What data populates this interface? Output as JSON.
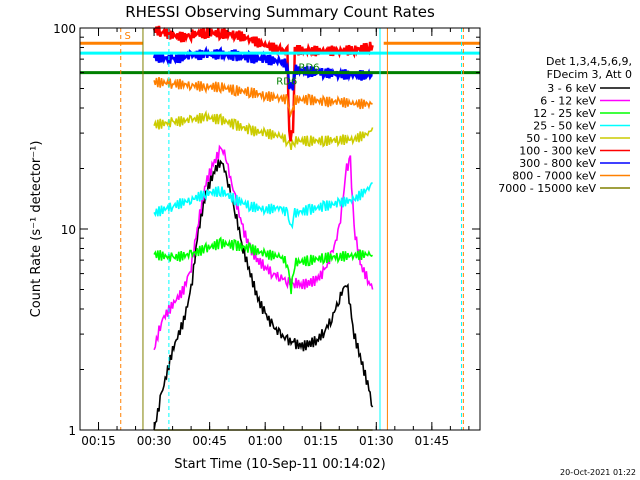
{
  "chart_data": {
    "type": "line",
    "title": "RHESSI Observing Summary Count Rates",
    "xlabel": "Start Time (10-Sep-11 00:14:02)",
    "ylabel": "Count Rate (s⁻¹ detector⁻¹)",
    "y_scale": "log",
    "ylim": [
      1,
      100
    ],
    "xlim_minutes": [
      10,
      58
    ],
    "x_ticks": [
      {
        "label": "00:15",
        "minutes": 15
      },
      {
        "label": "00:30",
        "minutes": 30
      },
      {
        "label": "00:45",
        "minutes": 45
      },
      {
        "label": "01:00",
        "minutes": 60
      },
      {
        "label": "01:15",
        "minutes": 75
      },
      {
        "label": "01:30",
        "minutes": 90
      },
      {
        "label": "01:45",
        "minutes": 105
      }
    ],
    "y_ticks": [
      {
        "label": "1",
        "value": 1
      },
      {
        "label": "10",
        "value": 10
      },
      {
        "label": "100",
        "value": 100
      }
    ],
    "legend": {
      "placement": "right",
      "header": [
        "Det 1,3,4,5,6,9,",
        "FDecim 3, Att 0"
      ],
      "entries": [
        {
          "label": "3 - 6 keV",
          "color": "#000000"
        },
        {
          "label": "6 - 12 keV",
          "color": "#ff00ff"
        },
        {
          "label": "12 - 25 keV",
          "color": "#00ff00"
        },
        {
          "label": "25 - 50 keV",
          "color": "#00ffff"
        },
        {
          "label": "50 - 100 keV",
          "color": "#cccc00"
        },
        {
          "label": "100 - 300 keV",
          "color": "#ff0000"
        },
        {
          "label": "300 - 800 keV",
          "color": "#0000ff"
        },
        {
          "label": "800 - 7000 keV",
          "color": "#ff8000"
        },
        {
          "label": "7000 - 15000 keV",
          "color": "#808000"
        }
      ]
    },
    "annotations": [
      {
        "text": "S",
        "color": "#ff8000"
      },
      {
        "text": "RD6",
        "color": "#008000"
      },
      {
        "text": "RD6",
        "color": "#008000"
      }
    ],
    "footer": "20-Oct-2021 01:22",
    "series": [
      {
        "name": "3 - 6 keV",
        "color": "#000000",
        "points": [
          [
            30,
            1
          ],
          [
            32,
            1.5
          ],
          [
            35,
            2.5
          ],
          [
            38,
            3.5
          ],
          [
            40,
            5
          ],
          [
            42,
            10
          ],
          [
            44,
            15
          ],
          [
            46,
            19
          ],
          [
            48,
            22
          ],
          [
            49,
            20
          ],
          [
            50,
            17
          ],
          [
            52,
            12
          ],
          [
            54,
            8
          ],
          [
            56,
            6
          ],
          [
            58,
            4.5
          ],
          [
            60,
            3.8
          ],
          [
            62,
            3.3
          ],
          [
            64,
            3
          ],
          [
            66,
            2.8
          ],
          [
            68,
            2.7
          ],
          [
            70,
            2.6
          ],
          [
            72,
            2.7
          ],
          [
            74,
            2.8
          ],
          [
            76,
            3.1
          ],
          [
            78,
            3.6
          ],
          [
            80,
            4.5
          ],
          [
            82,
            5.5
          ],
          [
            84,
            3
          ],
          [
            86,
            2.2
          ],
          [
            88,
            1.6
          ],
          [
            89,
            1.3
          ]
        ]
      },
      {
        "name": "6 - 12 keV",
        "color": "#ff00ff",
        "points": [
          [
            30,
            2.5
          ],
          [
            32,
            3.5
          ],
          [
            35,
            4.2
          ],
          [
            38,
            5
          ],
          [
            40,
            6.5
          ],
          [
            42,
            11
          ],
          [
            44,
            17
          ],
          [
            46,
            21
          ],
          [
            48,
            25
          ],
          [
            49,
            24
          ],
          [
            50,
            20
          ],
          [
            52,
            14
          ],
          [
            54,
            10
          ],
          [
            56,
            8
          ],
          [
            58,
            7
          ],
          [
            60,
            6.5
          ],
          [
            62,
            6
          ],
          [
            64,
            5.8
          ],
          [
            66,
            5.5
          ],
          [
            68,
            5.4
          ],
          [
            70,
            5.3
          ],
          [
            72,
            5.4
          ],
          [
            74,
            5.6
          ],
          [
            76,
            6.2
          ],
          [
            78,
            7.5
          ],
          [
            80,
            10
          ],
          [
            82,
            20
          ],
          [
            83,
            22
          ],
          [
            84,
            10
          ],
          [
            86,
            6.5
          ],
          [
            88,
            5.5
          ],
          [
            89,
            5
          ]
        ]
      },
      {
        "name": "12 - 25 keV",
        "color": "#00ff00",
        "points": [
          [
            30,
            7.5
          ],
          [
            35,
            7.2
          ],
          [
            40,
            7.5
          ],
          [
            44,
            8
          ],
          [
            48,
            8.5
          ],
          [
            52,
            8.3
          ],
          [
            56,
            8
          ],
          [
            60,
            7.5
          ],
          [
            64,
            7.3
          ],
          [
            66,
            6.8
          ],
          [
            67,
            5
          ],
          [
            68,
            6.8
          ],
          [
            72,
            7
          ],
          [
            76,
            7.2
          ],
          [
            80,
            7.3
          ],
          [
            84,
            7.4
          ],
          [
            88,
            7.5
          ],
          [
            89,
            7.4
          ]
        ]
      },
      {
        "name": "25 - 50 keV",
        "color": "#00ffff",
        "points": [
          [
            30,
            12
          ],
          [
            35,
            13
          ],
          [
            40,
            14
          ],
          [
            44,
            15
          ],
          [
            48,
            15.5
          ],
          [
            52,
            14
          ],
          [
            56,
            13
          ],
          [
            60,
            12.5
          ],
          [
            64,
            12.8
          ],
          [
            66,
            12
          ],
          [
            67,
            10
          ],
          [
            68,
            12
          ],
          [
            72,
            12.5
          ],
          [
            76,
            13
          ],
          [
            80,
            13.5
          ],
          [
            84,
            14
          ],
          [
            88,
            16
          ],
          [
            89,
            17
          ]
        ]
      },
      {
        "name": "50 - 100 keV",
        "color": "#cccc00",
        "points": [
          [
            30,
            33
          ],
          [
            35,
            34
          ],
          [
            40,
            35
          ],
          [
            44,
            36
          ],
          [
            48,
            35
          ],
          [
            52,
            33
          ],
          [
            56,
            31
          ],
          [
            60,
            30
          ],
          [
            64,
            29
          ],
          [
            66,
            27.5
          ],
          [
            67,
            26
          ],
          [
            68,
            27.5
          ],
          [
            72,
            27.5
          ],
          [
            76,
            27.5
          ],
          [
            80,
            27.8
          ],
          [
            84,
            28
          ],
          [
            88,
            30
          ],
          [
            89,
            32
          ]
        ]
      },
      {
        "name": "100 - 300 keV",
        "color": "#ff0000",
        "points": [
          [
            30,
            98
          ],
          [
            32,
            96
          ],
          [
            35,
            92
          ],
          [
            38,
            90
          ],
          [
            40,
            93
          ],
          [
            44,
            95
          ],
          [
            48,
            94
          ],
          [
            52,
            93
          ],
          [
            56,
            88
          ],
          [
            60,
            82
          ],
          [
            64,
            78
          ],
          [
            66,
            76
          ],
          [
            66.5,
            29
          ],
          [
            67.5,
            29
          ],
          [
            68,
            78
          ],
          [
            72,
            77
          ],
          [
            76,
            77
          ],
          [
            80,
            77
          ],
          [
            84,
            78
          ],
          [
            88,
            80
          ],
          [
            89,
            82
          ]
        ]
      },
      {
        "name": "300 - 800 keV",
        "color": "#0000ff",
        "points": [
          [
            30,
            72
          ],
          [
            35,
            70
          ],
          [
            40,
            73
          ],
          [
            44,
            74
          ],
          [
            48,
            74
          ],
          [
            52,
            73
          ],
          [
            56,
            71
          ],
          [
            60,
            70
          ],
          [
            64,
            68
          ],
          [
            66,
            66
          ],
          [
            66.5,
            52
          ],
          [
            67.5,
            52
          ],
          [
            68,
            62
          ],
          [
            72,
            61
          ],
          [
            76,
            60
          ],
          [
            80,
            59
          ],
          [
            84,
            58.5
          ],
          [
            88,
            58
          ],
          [
            89,
            58
          ]
        ]
      },
      {
        "name": "800 - 7000 keV",
        "color": "#ff8000",
        "points": [
          [
            30,
            54
          ],
          [
            35,
            53
          ],
          [
            40,
            52
          ],
          [
            44,
            51
          ],
          [
            48,
            51
          ],
          [
            52,
            49
          ],
          [
            56,
            48
          ],
          [
            60,
            46
          ],
          [
            64,
            45
          ],
          [
            66,
            44
          ],
          [
            66.5,
            38
          ],
          [
            67.5,
            38
          ],
          [
            68,
            44
          ],
          [
            72,
            44
          ],
          [
            76,
            43
          ],
          [
            80,
            43
          ],
          [
            84,
            42
          ],
          [
            88,
            42
          ],
          [
            89,
            42
          ]
        ]
      },
      {
        "name": "7000 - 15000 keV",
        "color": "#808000",
        "points": [
          [
            30,
            1
          ],
          [
            40,
            1
          ],
          [
            50,
            1
          ],
          [
            60,
            1
          ],
          [
            70,
            1
          ],
          [
            80,
            1
          ],
          [
            89,
            1
          ]
        ]
      }
    ]
  }
}
